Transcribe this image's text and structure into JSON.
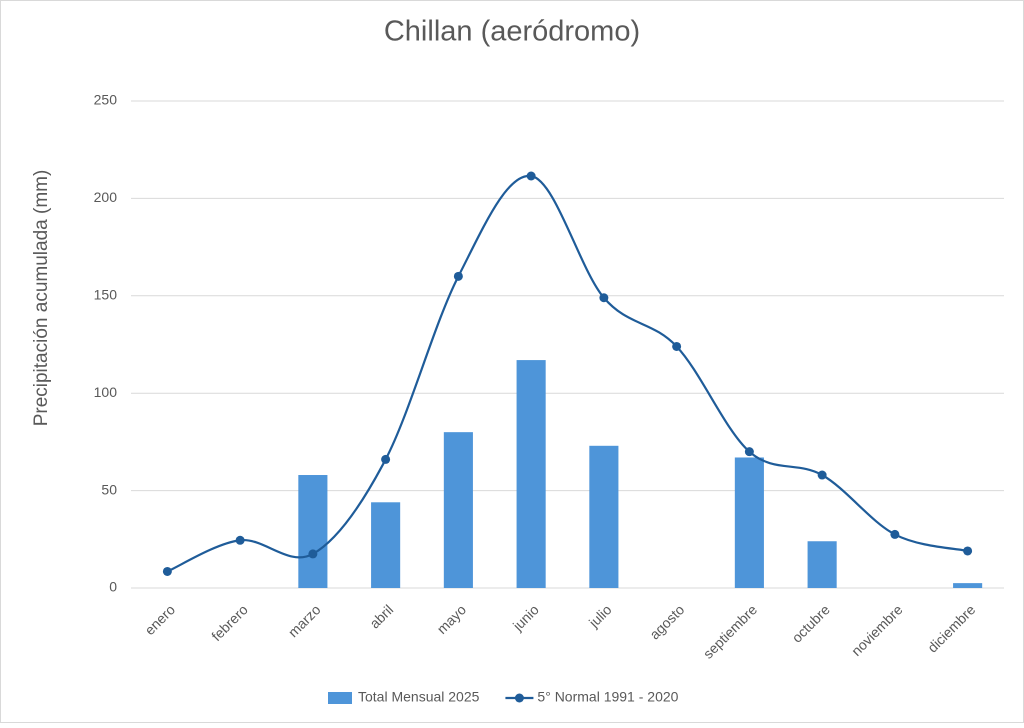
{
  "chart_data": {
    "type": "bar",
    "title": "Chillan (aeródromo)",
    "y_label": "Precipitación acumulada (mm)",
    "categories": [
      "enero",
      "febrero",
      "marzo",
      "abril",
      "mayo",
      "junio",
      "julio",
      "agosto",
      "septiembre",
      "octubre",
      "noviembre",
      "diciembre"
    ],
    "series": [
      {
        "name": "Total Mensual 2025",
        "type": "bar",
        "color": "#4e95d9",
        "values": [
          null,
          null,
          58,
          44,
          80,
          117,
          73,
          null,
          67,
          24,
          null,
          2.5
        ]
      },
      {
        "name": "5° Normal 1991 - 2020",
        "type": "line",
        "color": "#1f5c99",
        "values": [
          8.5,
          24.5,
          17.5,
          66,
          160,
          211.5,
          149,
          124,
          70,
          58,
          27.5,
          19
        ]
      }
    ],
    "ylim": [
      0,
      250
    ],
    "yticks": [
      0,
      50,
      100,
      150,
      200,
      250
    ],
    "grid": true,
    "legend": "bottom"
  }
}
